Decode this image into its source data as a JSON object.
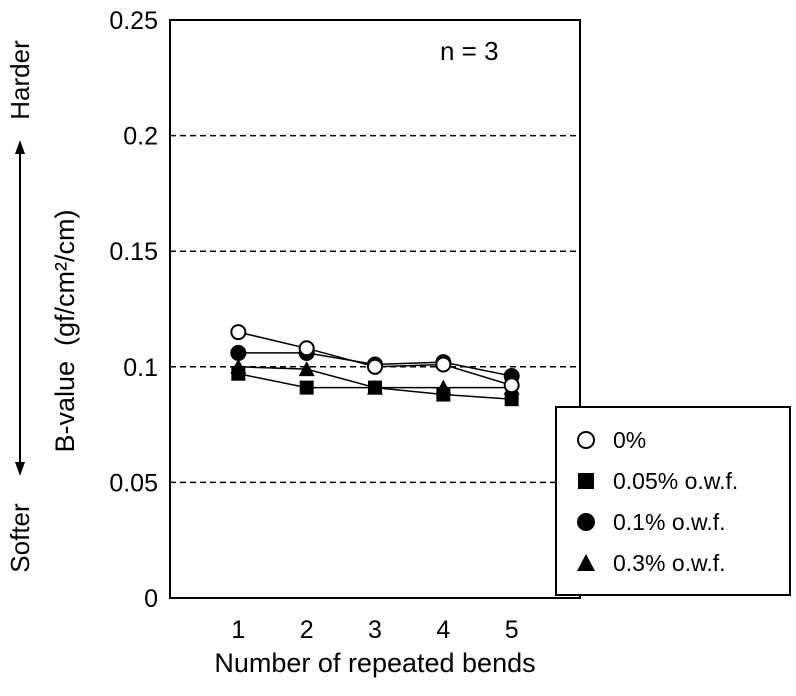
{
  "chart_data": {
    "type": "line",
    "annotation": "n = 3",
    "xlabel": "Number of repeated bends",
    "ylabel": "B-value",
    "ylabel_unit": "(gf/cm²/cm)",
    "direction_top": "Harder",
    "direction_bottom": "Softer",
    "x": [
      1,
      2,
      3,
      4,
      5
    ],
    "xticks": [
      "1",
      "2",
      "3",
      "4",
      "5"
    ],
    "xlim": [
      0,
      6
    ],
    "ylim": [
      0,
      0.25
    ],
    "yticks": [
      "0",
      "0.05",
      "0.1",
      "0.15",
      "0.2",
      "0.25"
    ],
    "grid": "dashed horizontal",
    "legend_position": "bottom-right outside",
    "series": [
      {
        "name": "0%",
        "marker": "open-circle",
        "values": [
          0.115,
          0.108,
          0.1,
          0.101,
          0.092
        ]
      },
      {
        "name": "0.05% o.w.f.",
        "marker": "filled-square",
        "values": [
          0.097,
          0.091,
          0.091,
          0.088,
          0.086
        ]
      },
      {
        "name": "0.1% o.w.f.",
        "marker": "filled-circle",
        "values": [
          0.106,
          0.106,
          0.101,
          0.102,
          0.096
        ]
      },
      {
        "name": "0.3% o.w.f.",
        "marker": "filled-triangle",
        "values": [
          0.1,
          0.099,
          0.091,
          0.091,
          0.091
        ]
      }
    ]
  }
}
